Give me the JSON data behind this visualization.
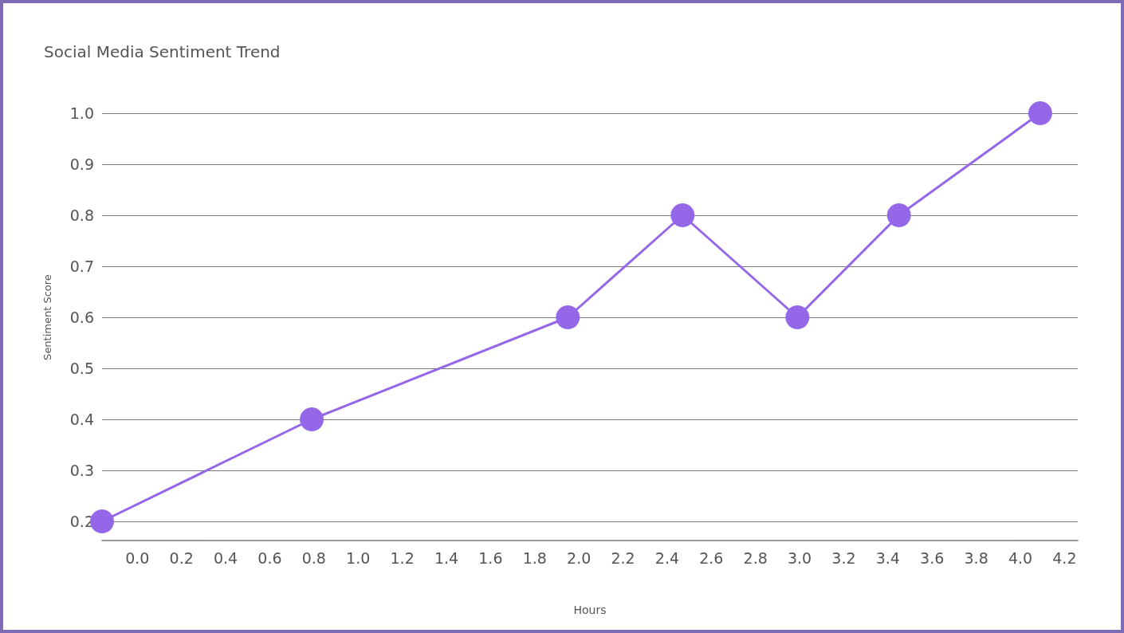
{
  "chart_data": {
    "type": "line",
    "title": "Social Media Sentiment Trend",
    "xlabel": "Hours",
    "ylabel": "Sentiment Score",
    "x": [
      -0.16,
      0.79,
      1.95,
      2.47,
      2.99,
      3.45,
      4.09
    ],
    "series": [
      {
        "color": "#9467e8",
        "values": [
          0.2,
          0.4,
          0.6,
          0.8,
          0.6,
          0.8,
          1.0
        ]
      }
    ],
    "xlim": [
      -0.16,
      4.26
    ],
    "xticks": [
      {
        "value": 0,
        "label": "0.0"
      },
      0.2,
      0.4,
      0.6,
      0.8,
      {
        "value": 1,
        "label": "1.0"
      },
      1.2,
      1.4,
      1.6,
      1.8,
      {
        "value": 2,
        "label": "2.0"
      },
      2.2,
      2.4,
      2.6,
      2.8,
      {
        "value": 3,
        "label": "3.0"
      },
      3.2,
      3.4,
      3.6,
      3.8,
      {
        "value": 4,
        "label": "4.0"
      },
      4.2
    ],
    "ylim": [
      0.2,
      1.0
    ],
    "yticks": [
      0.2,
      0.3,
      0.4,
      0.5,
      0.6,
      0.7,
      0.8,
      0.9,
      {
        "value": 1,
        "label": "1.0"
      }
    ],
    "grid": "y",
    "marker": "circle",
    "line_style": "solid"
  }
}
